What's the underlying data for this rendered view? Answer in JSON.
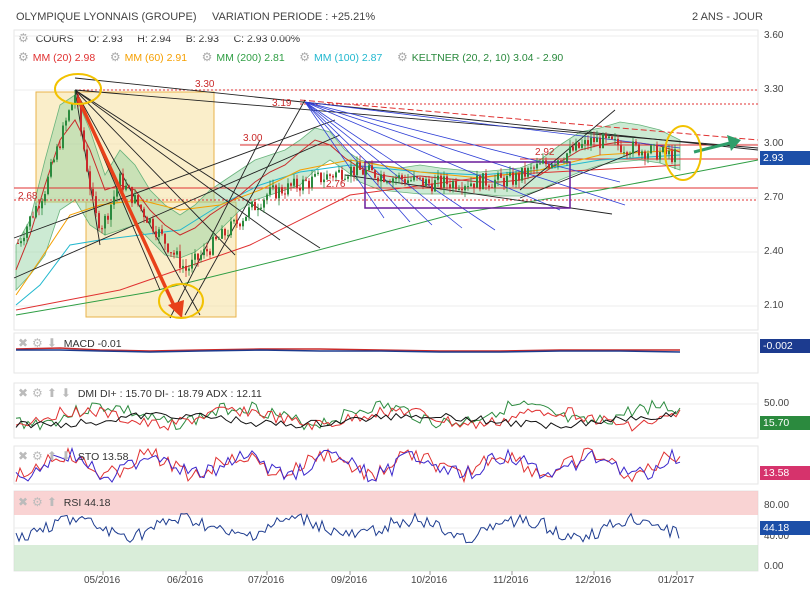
{
  "header": {
    "company": "OLYMPIQUE LYONNAIS (GROUPE)",
    "variation": "VARIATION PERIODE : +25.21%",
    "period": "2 ANS - JOUR"
  },
  "quote": {
    "label": "COURS",
    "open_label": "O:",
    "open": "2.93",
    "high_label": "H:",
    "high": "2.94",
    "low_label": "B:",
    "low": "2.93",
    "close_label": "C:",
    "close": "2.93 0.00%"
  },
  "overlays": [
    {
      "label": "MM (20)",
      "value": "2.98",
      "color": "#e03131"
    },
    {
      "label": "MM (60)",
      "value": "2.91",
      "color": "#f59f00"
    },
    {
      "label": "MM (200)",
      "value": "2.81",
      "color": "#2f9e44"
    },
    {
      "label": "MM (100)",
      "value": "2.87",
      "color": "#22b8cf"
    },
    {
      "label": "KELTNER (20, 2, 10)",
      "value": "3.04 - 2.90",
      "color": "#2b8a3e"
    }
  ],
  "annotations": {
    "a330": "3.30",
    "a319": "3.19",
    "a300": "3.00",
    "a292": "2.92",
    "a276": "2.76",
    "a268": "2.68"
  },
  "price_axis": [
    "3.60",
    "3.30",
    "3.00",
    "2.70",
    "2.40",
    "2.10"
  ],
  "price_tag": "2.93",
  "x_labels": [
    "05/2016",
    "06/2016",
    "07/2016",
    "09/2016",
    "10/2016",
    "11/2016",
    "12/2016",
    "01/2017"
  ],
  "panels": {
    "macd": {
      "title": "MACD",
      "value": "-0.01",
      "tag": "-0.002"
    },
    "dmi": {
      "title": "DMI",
      "text": "DI+ : 15.70 DI- : 18.79 ADX : 12.11",
      "axis": [
        "50.00"
      ],
      "tag": "15.70"
    },
    "sto": {
      "title": "STO",
      "value": "13.58",
      "tag": "13.58"
    },
    "rsi": {
      "title": "RSI",
      "value": "44.18",
      "axis": [
        "80.00",
        "40.00",
        "0.00"
      ],
      "tag": "44.18"
    }
  },
  "colors": {
    "price_tag": "#1c4fa8",
    "macd_tag": "#1c3b8f",
    "dmi_tag": "#2b8a3e",
    "sto_tag": "#d6336c",
    "rsi_tag": "#1c4fa8",
    "accent": "#e8411a"
  },
  "chart_data": {
    "type": "line",
    "title": "OLYMPIQUE LYONNAIS (GROUPE)",
    "xlabel": "",
    "ylabel": "",
    "x": [
      "05/2016",
      "06/2016",
      "07/2016",
      "09/2016",
      "10/2016",
      "11/2016",
      "12/2016",
      "01/2017"
    ],
    "ylim": [
      1.95,
      3.6
    ],
    "series": [
      {
        "name": "COURS",
        "values": [
          2.55,
          2.3,
          2.72,
          2.86,
          2.78,
          2.8,
          3.02,
          2.93
        ]
      },
      {
        "name": "MM (20)",
        "values": [
          2.75,
          2.45,
          2.65,
          2.92,
          2.8,
          2.78,
          2.95,
          2.98
        ]
      },
      {
        "name": "MM (60)",
        "values": [
          2.55,
          2.55,
          2.58,
          2.72,
          2.8,
          2.8,
          2.86,
          2.91
        ]
      },
      {
        "name": "MM (200)",
        "values": [
          2.15,
          2.28,
          2.42,
          2.55,
          2.64,
          2.7,
          2.76,
          2.81
        ]
      }
    ]
  }
}
